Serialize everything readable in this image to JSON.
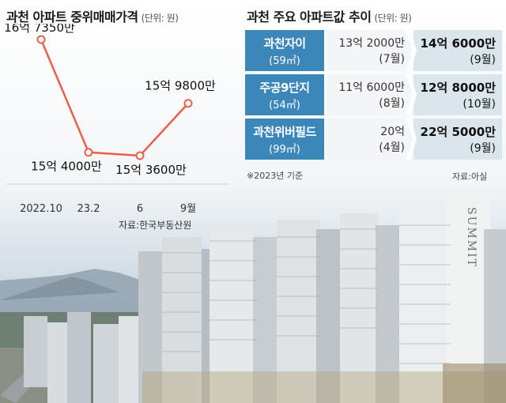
{
  "left_chart": {
    "title": "과천 아파트 중위매매가격",
    "unit": "(단위: 원)",
    "source": "자료:한국부동산원"
  },
  "chart_data": {
    "type": "line",
    "categories": [
      "2022.10",
      "23.2",
      "6",
      "9월"
    ],
    "values": [
      167350,
      154000,
      153600,
      159800
    ],
    "value_unit": "만원",
    "data_labels": [
      "16억 7350만",
      "15억 4000만",
      "15억 3600만",
      "15억 9800만"
    ],
    "line_color": "#e8604c",
    "title": "과천 아파트 중위매매가격"
  },
  "right_table": {
    "title": "과천 주요 아파트값 추이",
    "unit": "(단위: 원)",
    "rows": [
      {
        "name": "과천자이",
        "size": "(59㎡)",
        "old_price": "13억 2000만",
        "old_date": "(7월)",
        "new_price": "14억 6000만",
        "new_date": "(9월)"
      },
      {
        "name": "주공9단지",
        "size": "(54㎡)",
        "old_price": "11억 6000만",
        "old_date": "(8월)",
        "new_price": "12억 8000만",
        "new_date": "(10월)"
      },
      {
        "name": "과천위버필드",
        "size": "(99㎡)",
        "old_price": "20억",
        "old_date": "(4월)",
        "new_price": "22억 5000만",
        "new_date": "(9월)"
      }
    ],
    "footnote": "※2023년 기준",
    "source": "자료:아실"
  },
  "photo": {
    "building_sign": "SUMMIT"
  },
  "colors": {
    "line": "#e8604c",
    "name_cell": "#3c87b9",
    "old_cell": "#f4f5f6",
    "new_cell": "#dbe6ec"
  }
}
